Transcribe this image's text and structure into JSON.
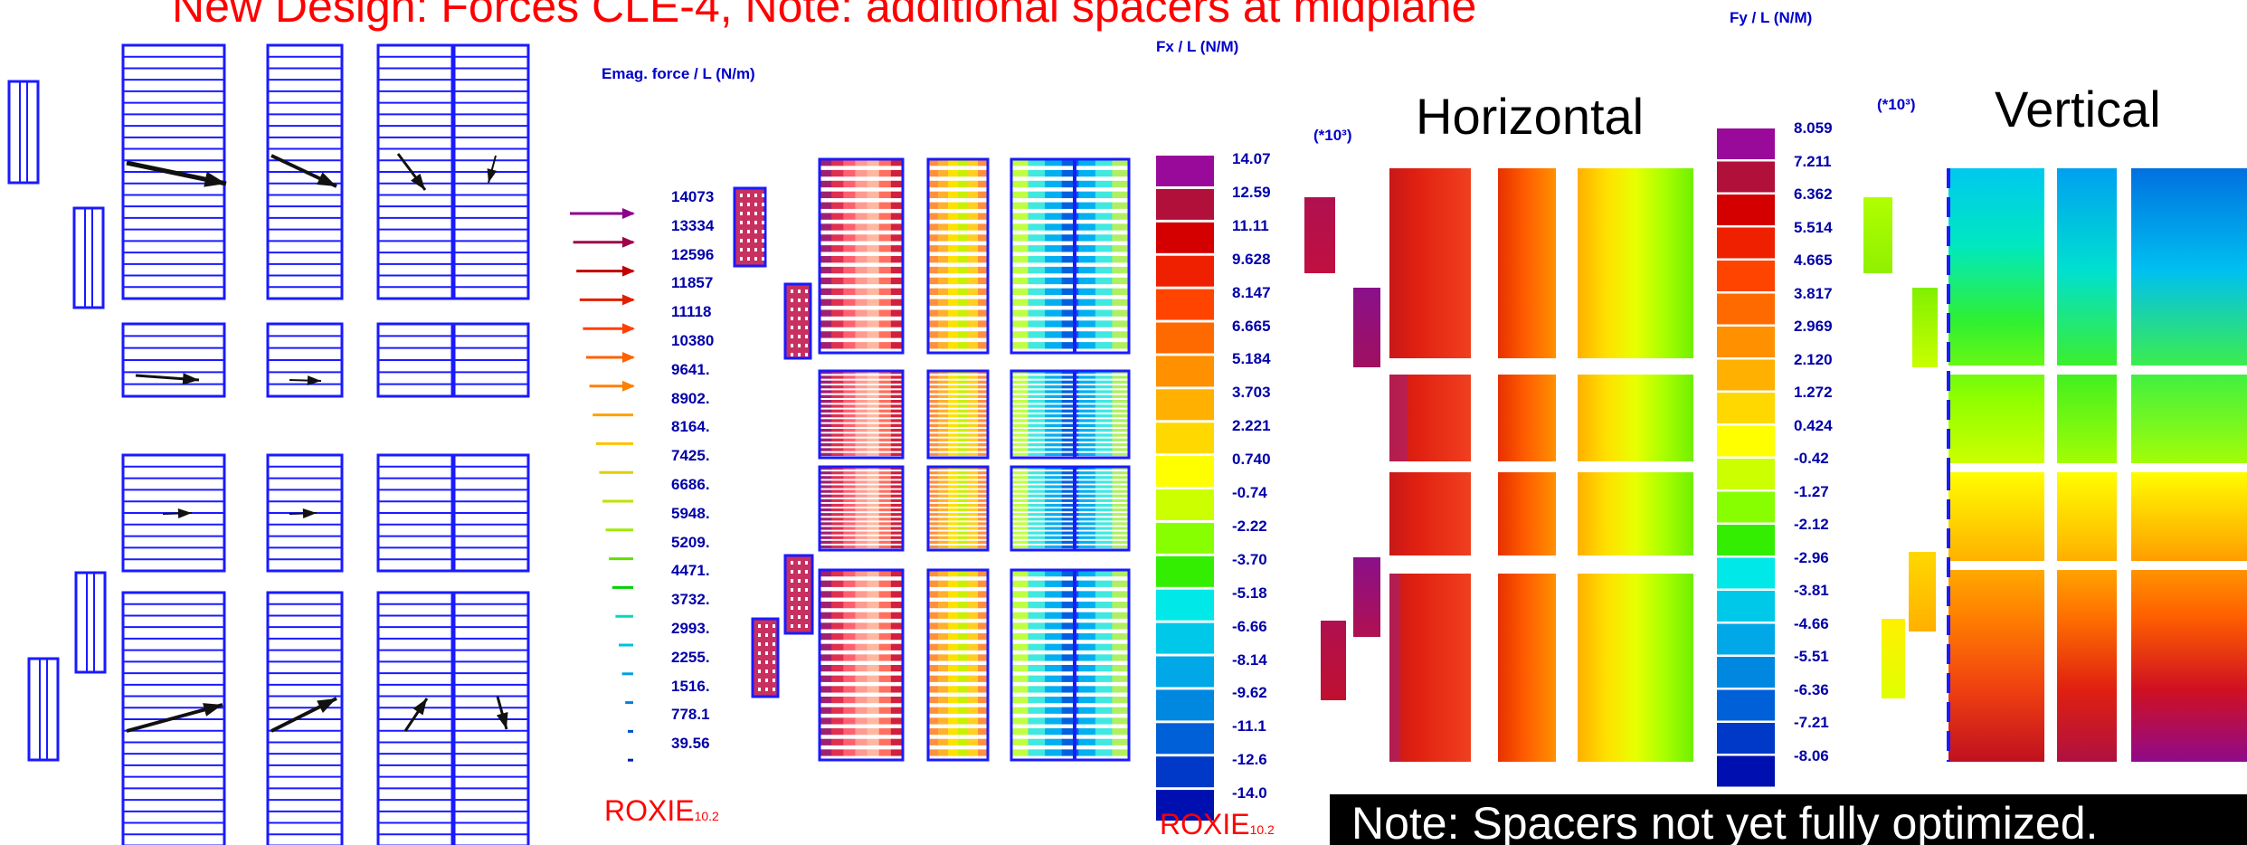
{
  "title": "New Design: Forces CLE-4, Note: additional spacers at midplane",
  "emag_label": "Emag. force / L (N/m)",
  "fx_label": "Fx / L  (N/M)",
  "fy_label": "Fy / L  (N/M)",
  "exp_fx": "(*10³)",
  "exp_fy": "(*10³)",
  "horizontal_label": "Horizontal",
  "vertical_label": "Vertical",
  "roxie_main": "ROXIE",
  "roxie_version": "10.2",
  "note": "Note: Spacers not yet fully optimized.",
  "emag_legend": [
    "14073",
    "13334",
    "12596",
    "11857",
    "11118",
    "10380",
    "9641.",
    "8902.",
    "8164.",
    "7425.",
    "6686.",
    "5948.",
    "5209.",
    "4471.",
    "3732.",
    "2993.",
    "2255.",
    "1516.",
    "778.1",
    "39.56"
  ],
  "fx_legend": [
    "14.07",
    "12.59",
    "11.11",
    "9.628",
    "8.147",
    "6.665",
    "5.184",
    "3.703",
    "2.221",
    "0.740",
    "-0.74",
    "-2.22",
    "-3.70",
    "-5.18",
    "-6.66",
    "-8.14",
    "-9.62",
    "-11.1",
    "-12.6",
    "-14.0"
  ],
  "fy_legend": [
    "8.059",
    "7.211",
    "6.362",
    "5.514",
    "4.665",
    "3.817",
    "2.969",
    "2.120",
    "1.272",
    "0.424",
    "-0.42",
    "-1.27",
    "-2.12",
    "-2.96",
    "-3.81",
    "-4.66",
    "-5.51",
    "-6.36",
    "-7.21",
    "-8.06"
  ],
  "fx_colors": [
    "#9a0a9a",
    "#b0103a",
    "#d40000",
    "#ee2000",
    "#ff4400",
    "#ff6a00",
    "#ff9000",
    "#ffb000",
    "#ffd800",
    "#ffff00",
    "#ccff00",
    "#88ff00",
    "#33ee00",
    "#00e8e8",
    "#00c8e8",
    "#00a8e8",
    "#0088e0",
    "#0060d8",
    "#0038c8",
    "#0010b0"
  ],
  "emag_arrow_colors": [
    "#8b008b",
    "#a0004a",
    "#c00000",
    "#e02000",
    "#ff4000",
    "#ff6000",
    "#ff8000",
    "#ffa000",
    "#ffc000",
    "#e0d000",
    "#c0e000",
    "#a0e800",
    "#60e000",
    "#00d000",
    "#00d8c0",
    "#00c0e0",
    "#00a0e0",
    "#0080e0",
    "#0050d0",
    "#0020b0"
  ]
}
